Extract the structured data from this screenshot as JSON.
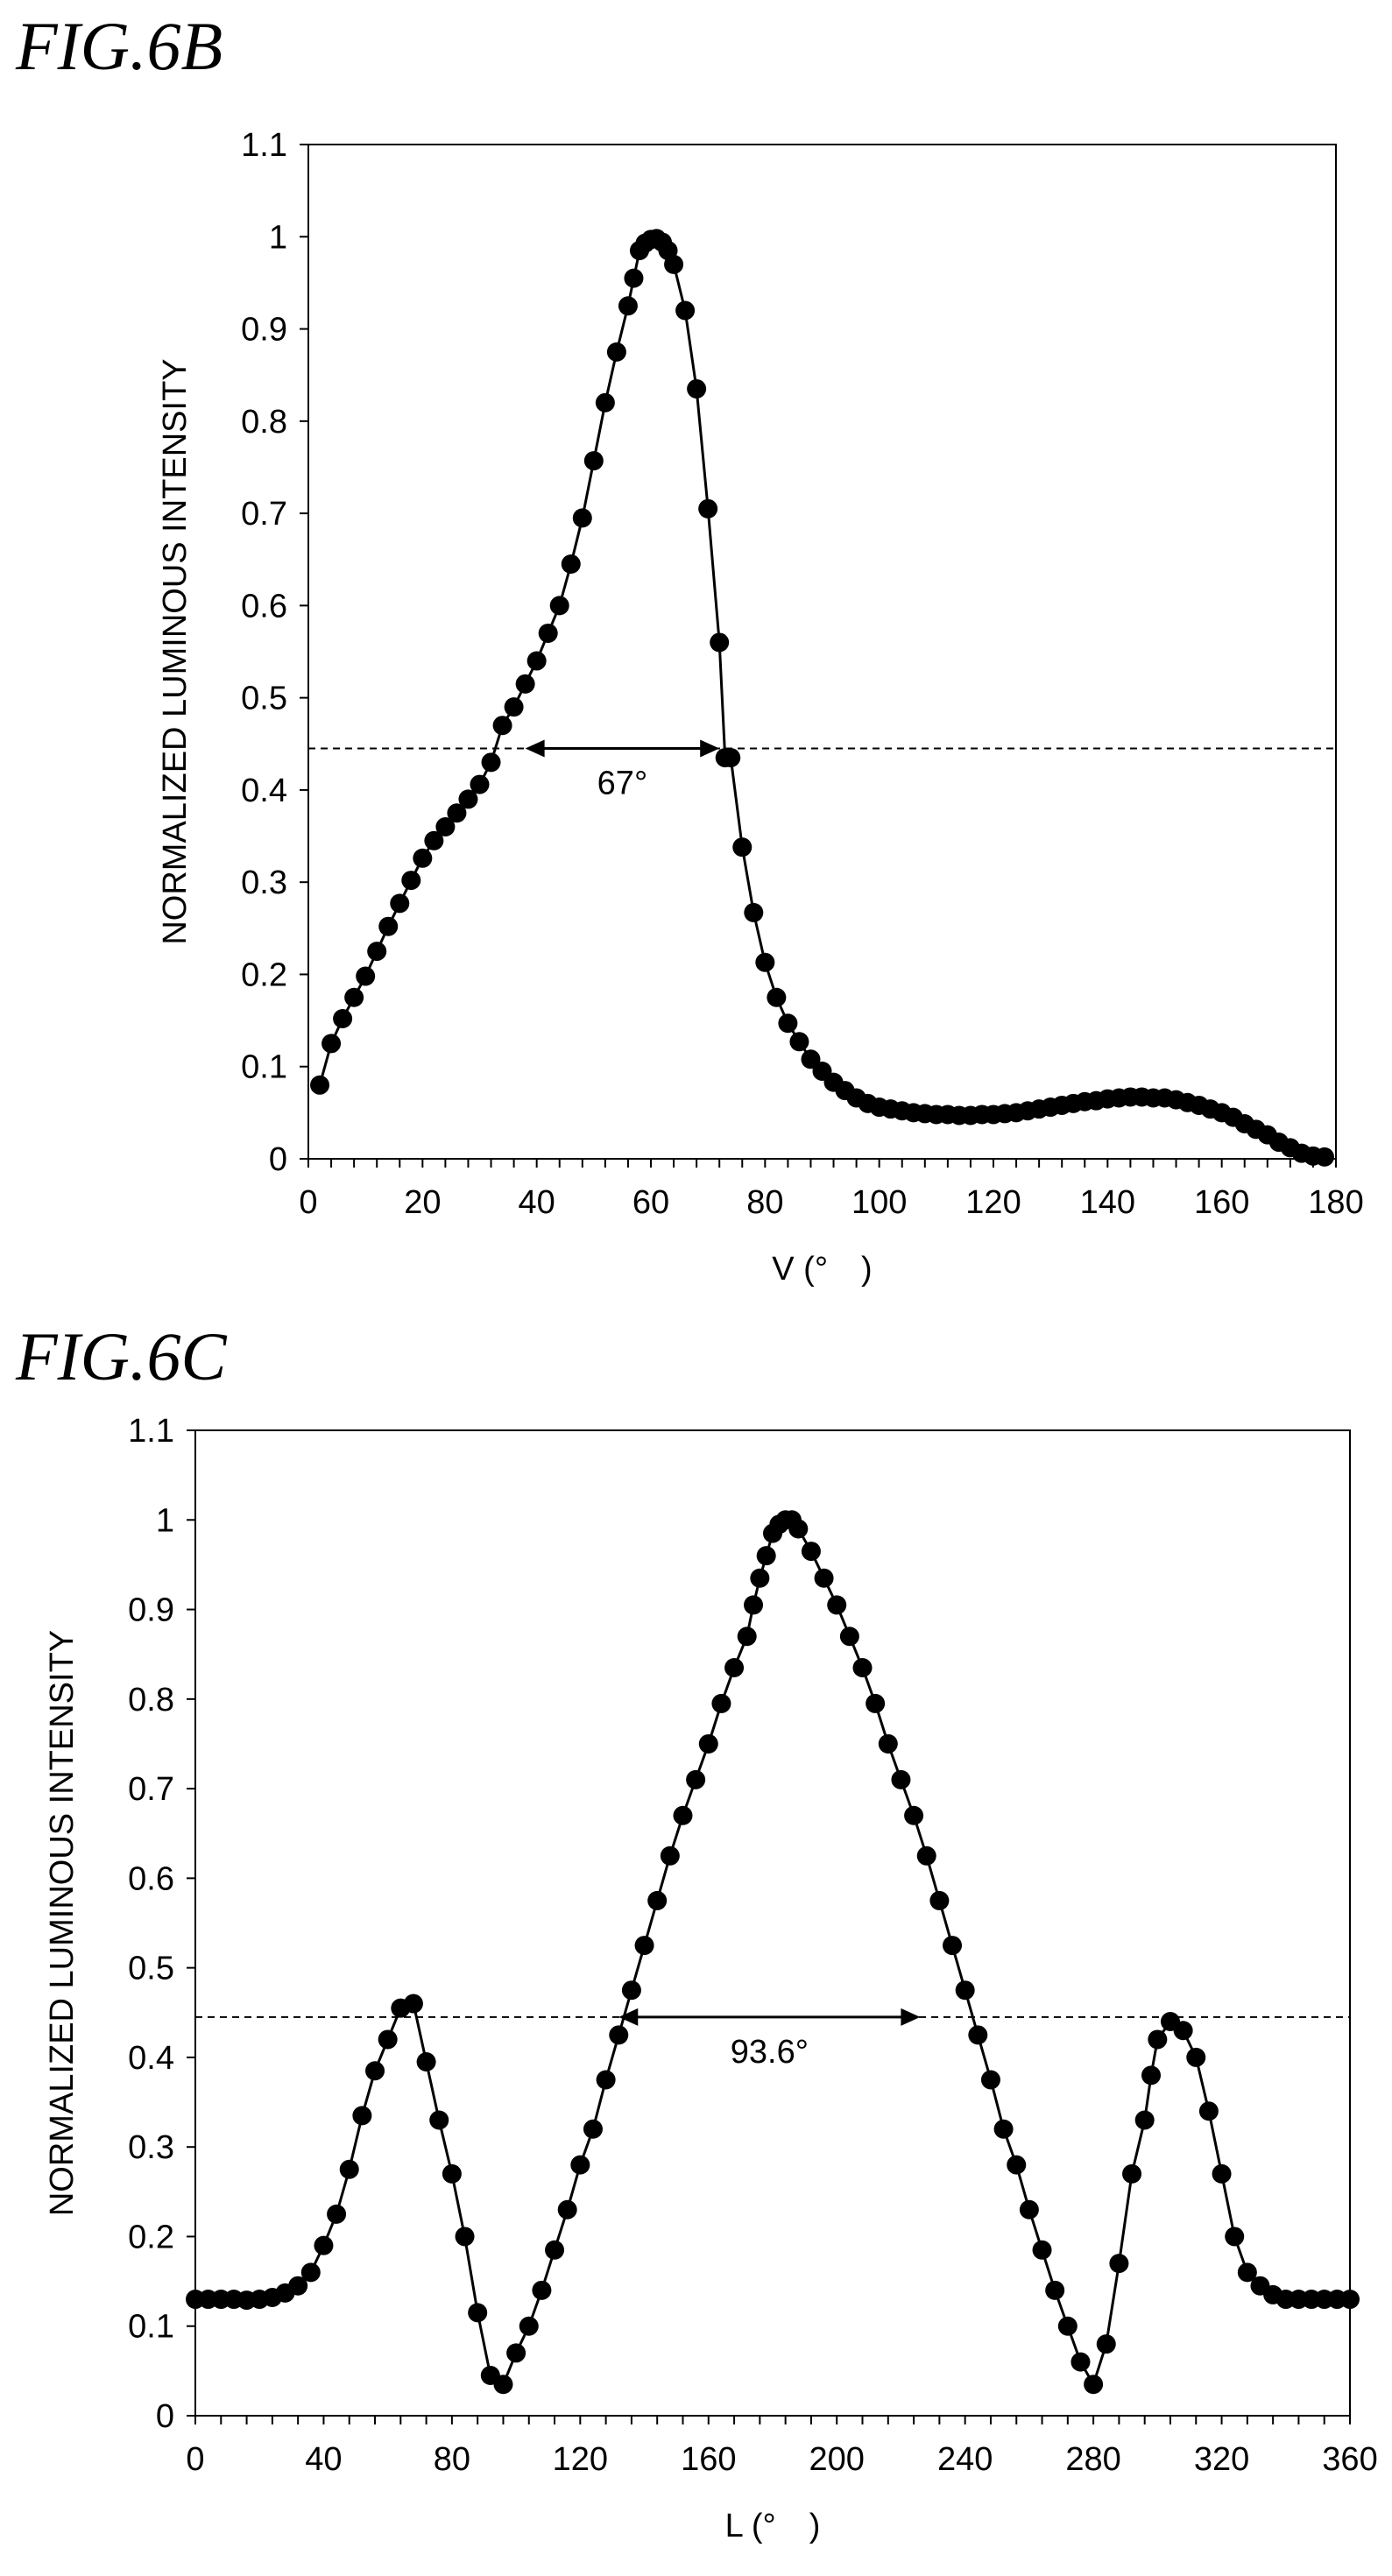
{
  "figures": [
    {
      "label": "FIG.6B"
    },
    {
      "label": "FIG.6C"
    }
  ],
  "chart_data": [
    {
      "type": "scatter",
      "title": "",
      "xlabel": "V (°　)",
      "ylabel": "NORMALIZED LUMINOUS INTENSITY",
      "xlim": [
        0,
        180
      ],
      "ylim": [
        0,
        1.1
      ],
      "xticks": [
        0,
        20,
        40,
        60,
        80,
        100,
        120,
        140,
        160,
        180
      ],
      "yticks": [
        0,
        0.1,
        0.2,
        0.3,
        0.4,
        0.5,
        0.6,
        0.7,
        0.8,
        0.9,
        1,
        1.1
      ],
      "grid": false,
      "reference_line": {
        "y": 0.445,
        "style": "dashed"
      },
      "annotation": {
        "text": "67°",
        "x_start": 38,
        "x_end": 72,
        "y": 0.445
      },
      "series": [
        {
          "x": [
            2,
            4,
            6,
            8,
            10,
            12,
            14,
            16,
            18,
            20,
            22,
            24,
            26,
            28,
            30,
            32,
            34,
            36,
            38,
            40,
            42,
            44,
            46,
            48,
            50,
            52,
            54,
            56,
            57,
            58,
            59,
            60,
            61,
            62,
            63,
            64,
            66,
            68,
            70,
            72,
            73,
            74,
            76,
            78,
            80,
            82,
            84,
            86,
            88,
            90,
            92,
            94,
            96,
            98,
            100,
            102,
            104,
            106,
            108,
            110,
            112,
            114,
            116,
            118,
            120,
            122,
            124,
            126,
            128,
            130,
            132,
            134,
            136,
            138,
            140,
            142,
            144,
            146,
            148,
            150,
            152,
            154,
            156,
            158,
            160,
            162,
            164,
            166,
            168,
            170,
            172,
            174,
            176,
            178
          ],
          "y": [
            0.08,
            0.125,
            0.152,
            0.175,
            0.198,
            0.225,
            0.252,
            0.277,
            0.302,
            0.326,
            0.345,
            0.36,
            0.375,
            0.39,
            0.406,
            0.43,
            0.47,
            0.49,
            0.515,
            0.54,
            0.57,
            0.6,
            0.645,
            0.695,
            0.757,
            0.82,
            0.875,
            0.925,
            0.955,
            0.985,
            0.993,
            0.997,
            0.998,
            0.994,
            0.985,
            0.97,
            0.92,
            0.835,
            0.705,
            0.56,
            0.435,
            0.435,
            0.338,
            0.267,
            0.213,
            0.175,
            0.147,
            0.127,
            0.108,
            0.095,
            0.083,
            0.074,
            0.066,
            0.06,
            0.056,
            0.054,
            0.052,
            0.05,
            0.049,
            0.048,
            0.048,
            0.047,
            0.047,
            0.048,
            0.048,
            0.049,
            0.05,
            0.052,
            0.054,
            0.056,
            0.058,
            0.06,
            0.062,
            0.063,
            0.065,
            0.066,
            0.067,
            0.067,
            0.066,
            0.066,
            0.064,
            0.061,
            0.058,
            0.054,
            0.05,
            0.045,
            0.038,
            0.032,
            0.026,
            0.018,
            0.012,
            0.006,
            0.003,
            0.002
          ]
        }
      ]
    },
    {
      "type": "scatter",
      "title": "",
      "xlabel": "L (°　)",
      "ylabel": "NORMALIZED LUMINOUS INTENSITY",
      "xlim": [
        0,
        360
      ],
      "ylim": [
        0,
        1.1
      ],
      "xticks": [
        0,
        40,
        80,
        120,
        160,
        200,
        240,
        280,
        320,
        360
      ],
      "yticks": [
        0,
        0.1,
        0.2,
        0.3,
        0.4,
        0.5,
        0.6,
        0.7,
        0.8,
        0.9,
        1,
        1.1
      ],
      "grid": false,
      "reference_line": {
        "y": 0.445,
        "style": "dashed"
      },
      "annotation": {
        "text": "93.6°",
        "x_start": 132,
        "x_end": 226,
        "y": 0.445
      },
      "series": [
        {
          "x": [
            0,
            4,
            8,
            12,
            16,
            20,
            24,
            28,
            32,
            36,
            40,
            44,
            48,
            52,
            56,
            60,
            64,
            68,
            72,
            76,
            80,
            84,
            88,
            92,
            96,
            100,
            104,
            108,
            112,
            116,
            120,
            124,
            128,
            132,
            136,
            140,
            144,
            148,
            152,
            156,
            160,
            164,
            168,
            172,
            174,
            176,
            178,
            180,
            182,
            184,
            186,
            188,
            192,
            196,
            200,
            204,
            208,
            212,
            216,
            220,
            224,
            228,
            232,
            236,
            240,
            244,
            248,
            252,
            256,
            260,
            264,
            268,
            272,
            276,
            280,
            284,
            288,
            292,
            296,
            298,
            300,
            304,
            308,
            312,
            316,
            320,
            324,
            328,
            332,
            336,
            340,
            344,
            348,
            352,
            356,
            360
          ],
          "y": [
            0.13,
            0.13,
            0.13,
            0.13,
            0.129,
            0.13,
            0.132,
            0.137,
            0.145,
            0.16,
            0.19,
            0.225,
            0.275,
            0.335,
            0.385,
            0.42,
            0.455,
            0.46,
            0.395,
            0.33,
            0.27,
            0.2,
            0.115,
            0.045,
            0.035,
            0.07,
            0.1,
            0.14,
            0.185,
            0.23,
            0.28,
            0.32,
            0.375,
            0.425,
            0.475,
            0.525,
            0.575,
            0.625,
            0.67,
            0.71,
            0.75,
            0.795,
            0.835,
            0.87,
            0.905,
            0.935,
            0.96,
            0.985,
            0.995,
            1.0,
            1.0,
            0.99,
            0.965,
            0.935,
            0.905,
            0.87,
            0.835,
            0.795,
            0.75,
            0.71,
            0.67,
            0.625,
            0.575,
            0.525,
            0.475,
            0.425,
            0.375,
            0.32,
            0.28,
            0.23,
            0.185,
            0.14,
            0.1,
            0.06,
            0.035,
            0.08,
            0.17,
            0.27,
            0.33,
            0.38,
            0.42,
            0.44,
            0.43,
            0.4,
            0.34,
            0.27,
            0.2,
            0.16,
            0.145,
            0.135,
            0.13,
            0.13,
            0.13,
            0.13,
            0.13,
            0.13
          ]
        }
      ]
    }
  ],
  "colors": {
    "marker": "#000000",
    "line": "#000000",
    "axis": "#000000",
    "reference_line": "#000000"
  }
}
